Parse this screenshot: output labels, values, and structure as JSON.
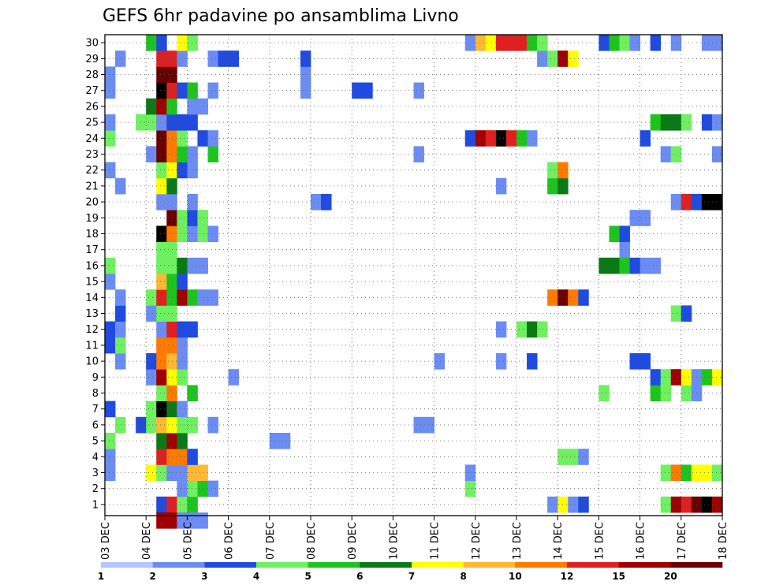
{
  "chart_data": {
    "type": "heatmap",
    "title": "GEFS 6hr padavine po ansamblima Livno",
    "xlabel": "",
    "ylabel": "",
    "x_tick_labels": [
      "03 DEC",
      "04 DEC",
      "05 DEC",
      "06 DEC",
      "07 DEC",
      "08 DEC",
      "09 DEC",
      "10 DEC",
      "11 DEC",
      "12 DEC",
      "13 DEC",
      "14 DEC",
      "15 DEC",
      "16 DEC",
      "17 DEC",
      "18 DEC"
    ],
    "y_tick_labels": [
      "1",
      "2",
      "3",
      "4",
      "5",
      "6",
      "7",
      "8",
      "9",
      "10",
      "11",
      "12",
      "13",
      "14",
      "15",
      "16",
      "17",
      "18",
      "19",
      "20",
      "21",
      "22",
      "23",
      "24",
      "25",
      "26",
      "27",
      "28",
      "29",
      "30"
    ],
    "time_steps": 60,
    "members": 30,
    "colorbar": {
      "labels": [
        "1",
        "2",
        "3",
        "4",
        "5",
        "6",
        "7",
        "8",
        "10",
        "12",
        "15",
        "20"
      ],
      "colors": [
        "#b3c6ff",
        "#6b8cf2",
        "#1f4be0",
        "#6ef060",
        "#1ec41e",
        "#0b7a16",
        "#ffff00",
        "#ffb833",
        "#ff7a00",
        "#e02020",
        "#a00000",
        "#6b0000"
      ]
    },
    "cells": [
      [
        1,
        6,
        3
      ],
      [
        1,
        7,
        10
      ],
      [
        1,
        8,
        4
      ],
      [
        1,
        9,
        5
      ],
      [
        1,
        44,
        2
      ],
      [
        1,
        45,
        7
      ],
      [
        1,
        46,
        2
      ],
      [
        1,
        47,
        3
      ],
      [
        1,
        55,
        4
      ],
      [
        1,
        56,
        11
      ],
      [
        1,
        57,
        10
      ],
      [
        1,
        58,
        12
      ],
      [
        1,
        59,
        13
      ],
      [
        1,
        60,
        11
      ],
      [
        2,
        8,
        2
      ],
      [
        2,
        9,
        4
      ],
      [
        2,
        10,
        5
      ],
      [
        2,
        11,
        2
      ],
      [
        2,
        36,
        4
      ],
      [
        3,
        1,
        2
      ],
      [
        3,
        5,
        7
      ],
      [
        3,
        6,
        4
      ],
      [
        3,
        7,
        2
      ],
      [
        3,
        8,
        2
      ],
      [
        3,
        9,
        8
      ],
      [
        3,
        10,
        8
      ],
      [
        3,
        36,
        2
      ],
      [
        3,
        55,
        4
      ],
      [
        3,
        56,
        9
      ],
      [
        3,
        57,
        5
      ],
      [
        3,
        58,
        7
      ],
      [
        3,
        59,
        7
      ],
      [
        3,
        60,
        4
      ],
      [
        4,
        1,
        2
      ],
      [
        4,
        6,
        10
      ],
      [
        4,
        7,
        9
      ],
      [
        4,
        8,
        9
      ],
      [
        4,
        9,
        3
      ],
      [
        4,
        45,
        4
      ],
      [
        4,
        46,
        4
      ],
      [
        4,
        47,
        2
      ],
      [
        5,
        1,
        4
      ],
      [
        5,
        6,
        6
      ],
      [
        5,
        7,
        11
      ],
      [
        5,
        8,
        6
      ],
      [
        5,
        17,
        2
      ],
      [
        5,
        18,
        2
      ],
      [
        6,
        2,
        4
      ],
      [
        6,
        4,
        3
      ],
      [
        6,
        5,
        4
      ],
      [
        6,
        6,
        8
      ],
      [
        6,
        7,
        7
      ],
      [
        6,
        8,
        4
      ],
      [
        6,
        9,
        4
      ],
      [
        6,
        11,
        2
      ],
      [
        6,
        31,
        2
      ],
      [
        6,
        32,
        2
      ],
      [
        7,
        1,
        3
      ],
      [
        7,
        5,
        4
      ],
      [
        7,
        6,
        13
      ],
      [
        7,
        7,
        6
      ],
      [
        7,
        8,
        2
      ],
      [
        8,
        6,
        4
      ],
      [
        8,
        7,
        9
      ],
      [
        8,
        9,
        5
      ],
      [
        8,
        49,
        4
      ],
      [
        8,
        54,
        5
      ],
      [
        8,
        55,
        4
      ],
      [
        8,
        57,
        4
      ],
      [
        8,
        58,
        2
      ],
      [
        9,
        5,
        2
      ],
      [
        9,
        6,
        11
      ],
      [
        9,
        7,
        7
      ],
      [
        9,
        8,
        4
      ],
      [
        9,
        13,
        2
      ],
      [
        9,
        54,
        3
      ],
      [
        9,
        55,
        4
      ],
      [
        9,
        56,
        11
      ],
      [
        9,
        57,
        7
      ],
      [
        9,
        58,
        2
      ],
      [
        9,
        59,
        5
      ],
      [
        9,
        60,
        7
      ],
      [
        10,
        2,
        2
      ],
      [
        10,
        5,
        3
      ],
      [
        10,
        6,
        9
      ],
      [
        10,
        7,
        8
      ],
      [
        10,
        8,
        2
      ],
      [
        10,
        33,
        2
      ],
      [
        10,
        39,
        2
      ],
      [
        10,
        42,
        3
      ],
      [
        10,
        52,
        3
      ],
      [
        10,
        53,
        3
      ],
      [
        11,
        1,
        3
      ],
      [
        11,
        2,
        4
      ],
      [
        11,
        6,
        9
      ],
      [
        11,
        7,
        9
      ],
      [
        11,
        8,
        2
      ],
      [
        12,
        1,
        3
      ],
      [
        12,
        2,
        2
      ],
      [
        12,
        6,
        2
      ],
      [
        12,
        7,
        10
      ],
      [
        12,
        8,
        3
      ],
      [
        12,
        9,
        3
      ],
      [
        12,
        39,
        2
      ],
      [
        12,
        41,
        4
      ],
      [
        12,
        42,
        6
      ],
      [
        12,
        43,
        4
      ],
      [
        13,
        2,
        3
      ],
      [
        13,
        5,
        2
      ],
      [
        13,
        6,
        4
      ],
      [
        13,
        7,
        4
      ],
      [
        13,
        56,
        4
      ],
      [
        13,
        57,
        3
      ],
      [
        14,
        2,
        2
      ],
      [
        14,
        5,
        4
      ],
      [
        14,
        6,
        10
      ],
      [
        14,
        7,
        5
      ],
      [
        14,
        8,
        11
      ],
      [
        14,
        9,
        5
      ],
      [
        14,
        10,
        2
      ],
      [
        14,
        11,
        2
      ],
      [
        14,
        44,
        9
      ],
      [
        14,
        45,
        12
      ],
      [
        14,
        46,
        9
      ],
      [
        14,
        47,
        3
      ],
      [
        15,
        1,
        2
      ],
      [
        15,
        6,
        8
      ],
      [
        15,
        7,
        5
      ],
      [
        15,
        8,
        3
      ],
      [
        16,
        1,
        4
      ],
      [
        16,
        6,
        4
      ],
      [
        16,
        7,
        4
      ],
      [
        16,
        8,
        6
      ],
      [
        16,
        9,
        2
      ],
      [
        16,
        10,
        2
      ],
      [
        16,
        49,
        6
      ],
      [
        16,
        50,
        6
      ],
      [
        16,
        51,
        5
      ],
      [
        16,
        52,
        3
      ],
      [
        16,
        53,
        2
      ],
      [
        16,
        54,
        2
      ],
      [
        17,
        6,
        4
      ],
      [
        17,
        7,
        4
      ],
      [
        17,
        51,
        2
      ],
      [
        18,
        6,
        13
      ],
      [
        18,
        7,
        9
      ],
      [
        18,
        8,
        4
      ],
      [
        18,
        9,
        2
      ],
      [
        18,
        10,
        4
      ],
      [
        18,
        11,
        2
      ],
      [
        18,
        50,
        5
      ],
      [
        18,
        51,
        3
      ],
      [
        19,
        7,
        12
      ],
      [
        19,
        8,
        4
      ],
      [
        19,
        9,
        3
      ],
      [
        19,
        10,
        4
      ],
      [
        19,
        52,
        2
      ],
      [
        19,
        53,
        2
      ],
      [
        20,
        6,
        2
      ],
      [
        20,
        7,
        2
      ],
      [
        20,
        9,
        2
      ],
      [
        20,
        21,
        2
      ],
      [
        20,
        22,
        3
      ],
      [
        20,
        56,
        2
      ],
      [
        20,
        57,
        10
      ],
      [
        20,
        58,
        3
      ],
      [
        20,
        59,
        13
      ],
      [
        20,
        60,
        13
      ],
      [
        21,
        2,
        2
      ],
      [
        21,
        6,
        7
      ],
      [
        21,
        7,
        6
      ],
      [
        21,
        39,
        2
      ],
      [
        21,
        44,
        5
      ],
      [
        21,
        45,
        6
      ],
      [
        22,
        1,
        2
      ],
      [
        22,
        6,
        4
      ],
      [
        22,
        7,
        7
      ],
      [
        22,
        8,
        3
      ],
      [
        22,
        9,
        2
      ],
      [
        22,
        44,
        4
      ],
      [
        22,
        45,
        9
      ],
      [
        23,
        5,
        2
      ],
      [
        23,
        6,
        12
      ],
      [
        23,
        7,
        9
      ],
      [
        23,
        8,
        5
      ],
      [
        23,
        9,
        2
      ],
      [
        23,
        11,
        5
      ],
      [
        23,
        31,
        2
      ],
      [
        23,
        55,
        2
      ],
      [
        23,
        56,
        4
      ],
      [
        23,
        60,
        2
      ],
      [
        24,
        1,
        4
      ],
      [
        24,
        6,
        12
      ],
      [
        24,
        7,
        9
      ],
      [
        24,
        8,
        4
      ],
      [
        24,
        10,
        3
      ],
      [
        24,
        11,
        2
      ],
      [
        24,
        36,
        3
      ],
      [
        24,
        37,
        11
      ],
      [
        24,
        38,
        10
      ],
      [
        24,
        39,
        13
      ],
      [
        24,
        40,
        10
      ],
      [
        24,
        41,
        5
      ],
      [
        24,
        42,
        2
      ],
      [
        24,
        53,
        3
      ],
      [
        25,
        1,
        2
      ],
      [
        25,
        4,
        4
      ],
      [
        25,
        5,
        4
      ],
      [
        25,
        6,
        2
      ],
      [
        25,
        7,
        3
      ],
      [
        25,
        8,
        3
      ],
      [
        25,
        9,
        3
      ],
      [
        25,
        54,
        5
      ],
      [
        25,
        55,
        6
      ],
      [
        25,
        56,
        6
      ],
      [
        25,
        57,
        4
      ],
      [
        25,
        59,
        3
      ],
      [
        25,
        60,
        2
      ],
      [
        26,
        5,
        6
      ],
      [
        26,
        6,
        11
      ],
      [
        26,
        7,
        5
      ],
      [
        26,
        9,
        2
      ],
      [
        26,
        10,
        2
      ],
      [
        27,
        1,
        2
      ],
      [
        27,
        6,
        13
      ],
      [
        27,
        7,
        10
      ],
      [
        27,
        8,
        3
      ],
      [
        27,
        9,
        5
      ],
      [
        27,
        11,
        2
      ],
      [
        27,
        20,
        2
      ],
      [
        27,
        25,
        3
      ],
      [
        27,
        26,
        3
      ],
      [
        27,
        31,
        2
      ],
      [
        28,
        1,
        2
      ],
      [
        28,
        6,
        12
      ],
      [
        28,
        7,
        12
      ],
      [
        28,
        20,
        2
      ],
      [
        29,
        2,
        2
      ],
      [
        29,
        6,
        10
      ],
      [
        29,
        7,
        10
      ],
      [
        29,
        8,
        2
      ],
      [
        29,
        11,
        2
      ],
      [
        29,
        12,
        3
      ],
      [
        29,
        13,
        3
      ],
      [
        29,
        20,
        3
      ],
      [
        29,
        43,
        2
      ],
      [
        29,
        44,
        4
      ],
      [
        29,
        45,
        11
      ],
      [
        29,
        46,
        7
      ],
      [
        30,
        5,
        5
      ],
      [
        30,
        6,
        3
      ],
      [
        30,
        8,
        7
      ],
      [
        30,
        9,
        4
      ],
      [
        30,
        36,
        2
      ],
      [
        30,
        37,
        8
      ],
      [
        30,
        38,
        7
      ],
      [
        30,
        39,
        10
      ],
      [
        30,
        40,
        10
      ],
      [
        30,
        41,
        10
      ],
      [
        30,
        42,
        5
      ],
      [
        30,
        43,
        4
      ],
      [
        30,
        49,
        3
      ],
      [
        30,
        50,
        5
      ],
      [
        30,
        51,
        4
      ],
      [
        30,
        52,
        2
      ],
      [
        30,
        54,
        3
      ],
      [
        30,
        56,
        2
      ],
      [
        30,
        59,
        2
      ],
      [
        30,
        60,
        2
      ],
      [
        0,
        6,
        11
      ],
      [
        0,
        7,
        11
      ],
      [
        0,
        8,
        2
      ],
      [
        0,
        9,
        2
      ],
      [
        0,
        10,
        2
      ]
    ]
  }
}
